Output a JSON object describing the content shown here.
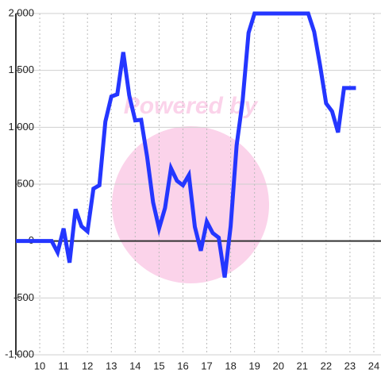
{
  "chart_data": {
    "type": "line",
    "watermark": "Powered by",
    "x": [
      9,
      10.5,
      10.75,
      11,
      11.25,
      11.5,
      11.75,
      12,
      12.25,
      12.5,
      12.75,
      13,
      13.25,
      13.5,
      13.75,
      14,
      14.25,
      14.5,
      14.75,
      15,
      15.25,
      15.5,
      15.75,
      16,
      16.25,
      16.5,
      16.75,
      17,
      17.25,
      17.5,
      17.75,
      18,
      18.25,
      18.5,
      18.75,
      19,
      21.25,
      21.5,
      21.75,
      22,
      22.25,
      22.5,
      22.75,
      23.25
    ],
    "series": [
      {
        "color": "#2436ff",
        "values": [
          0,
          0,
          -100,
          110,
          -190,
          280,
          130,
          85,
          460,
          490,
          1050,
          1270,
          1290,
          1660,
          1280,
          1060,
          1065,
          740,
          340,
          110,
          290,
          640,
          530,
          490,
          580,
          125,
          -85,
          170,
          70,
          30,
          -320,
          130,
          840,
          1230,
          1830,
          2000,
          2000,
          1840,
          1540,
          1210,
          1140,
          955,
          1345,
          1345
        ]
      }
    ],
    "xlim": [
      9,
      24.3
    ],
    "xticks": [
      10,
      11,
      12,
      13,
      14,
      15,
      16,
      17,
      18,
      19,
      20,
      21,
      22,
      23,
      24
    ],
    "ylim": [
      -1000,
      2000
    ],
    "yticks": [
      {
        "value": -1000,
        "label": "-1,000"
      },
      -500,
      0,
      500,
      {
        "value": 1000,
        "label": "1,000"
      },
      {
        "value": 1500,
        "label": "1,500"
      },
      {
        "value": 2000,
        "label": "2,000"
      }
    ],
    "grid": true
  }
}
